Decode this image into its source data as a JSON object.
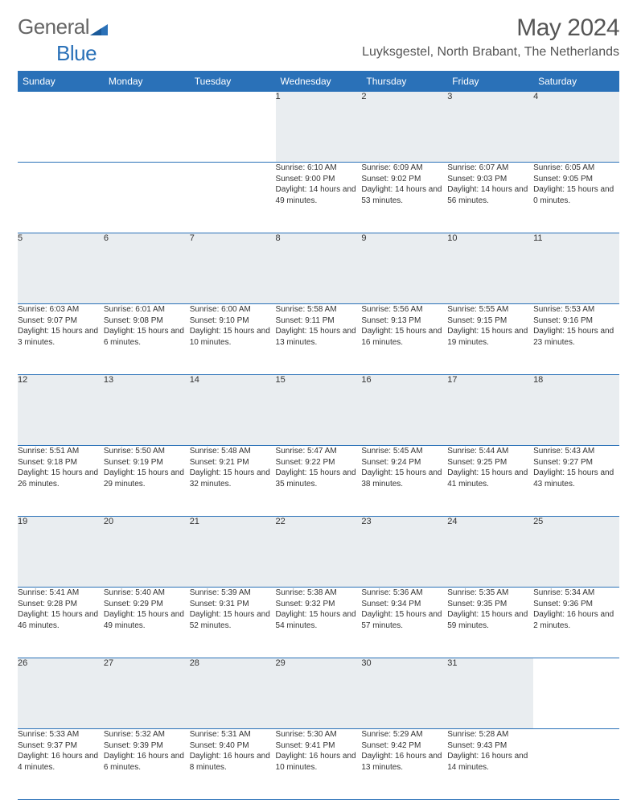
{
  "brand": {
    "general": "General",
    "blue": "Blue",
    "triangle_color": "#2a71b8"
  },
  "title": {
    "month": "May 2024",
    "location": "Luyksgestel, North Brabant, The Netherlands"
  },
  "colors": {
    "header_bg": "#2a71b8",
    "header_fg": "#ffffff",
    "daynum_bg": "#e9edf0",
    "rule": "#2a71b8"
  },
  "daysOfWeek": [
    "Sunday",
    "Monday",
    "Tuesday",
    "Wednesday",
    "Thursday",
    "Friday",
    "Saturday"
  ],
  "weeks": [
    [
      null,
      null,
      null,
      {
        "n": "1",
        "sr": "6:10 AM",
        "ss": "9:00 PM",
        "dl": "14 hours and 49 minutes."
      },
      {
        "n": "2",
        "sr": "6:09 AM",
        "ss": "9:02 PM",
        "dl": "14 hours and 53 minutes."
      },
      {
        "n": "3",
        "sr": "6:07 AM",
        "ss": "9:03 PM",
        "dl": "14 hours and 56 minutes."
      },
      {
        "n": "4",
        "sr": "6:05 AM",
        "ss": "9:05 PM",
        "dl": "15 hours and 0 minutes."
      }
    ],
    [
      {
        "n": "5",
        "sr": "6:03 AM",
        "ss": "9:07 PM",
        "dl": "15 hours and 3 minutes."
      },
      {
        "n": "6",
        "sr": "6:01 AM",
        "ss": "9:08 PM",
        "dl": "15 hours and 6 minutes."
      },
      {
        "n": "7",
        "sr": "6:00 AM",
        "ss": "9:10 PM",
        "dl": "15 hours and 10 minutes."
      },
      {
        "n": "8",
        "sr": "5:58 AM",
        "ss": "9:11 PM",
        "dl": "15 hours and 13 minutes."
      },
      {
        "n": "9",
        "sr": "5:56 AM",
        "ss": "9:13 PM",
        "dl": "15 hours and 16 minutes."
      },
      {
        "n": "10",
        "sr": "5:55 AM",
        "ss": "9:15 PM",
        "dl": "15 hours and 19 minutes."
      },
      {
        "n": "11",
        "sr": "5:53 AM",
        "ss": "9:16 PM",
        "dl": "15 hours and 23 minutes."
      }
    ],
    [
      {
        "n": "12",
        "sr": "5:51 AM",
        "ss": "9:18 PM",
        "dl": "15 hours and 26 minutes."
      },
      {
        "n": "13",
        "sr": "5:50 AM",
        "ss": "9:19 PM",
        "dl": "15 hours and 29 minutes."
      },
      {
        "n": "14",
        "sr": "5:48 AM",
        "ss": "9:21 PM",
        "dl": "15 hours and 32 minutes."
      },
      {
        "n": "15",
        "sr": "5:47 AM",
        "ss": "9:22 PM",
        "dl": "15 hours and 35 minutes."
      },
      {
        "n": "16",
        "sr": "5:45 AM",
        "ss": "9:24 PM",
        "dl": "15 hours and 38 minutes."
      },
      {
        "n": "17",
        "sr": "5:44 AM",
        "ss": "9:25 PM",
        "dl": "15 hours and 41 minutes."
      },
      {
        "n": "18",
        "sr": "5:43 AM",
        "ss": "9:27 PM",
        "dl": "15 hours and 43 minutes."
      }
    ],
    [
      {
        "n": "19",
        "sr": "5:41 AM",
        "ss": "9:28 PM",
        "dl": "15 hours and 46 minutes."
      },
      {
        "n": "20",
        "sr": "5:40 AM",
        "ss": "9:29 PM",
        "dl": "15 hours and 49 minutes."
      },
      {
        "n": "21",
        "sr": "5:39 AM",
        "ss": "9:31 PM",
        "dl": "15 hours and 52 minutes."
      },
      {
        "n": "22",
        "sr": "5:38 AM",
        "ss": "9:32 PM",
        "dl": "15 hours and 54 minutes."
      },
      {
        "n": "23",
        "sr": "5:36 AM",
        "ss": "9:34 PM",
        "dl": "15 hours and 57 minutes."
      },
      {
        "n": "24",
        "sr": "5:35 AM",
        "ss": "9:35 PM",
        "dl": "15 hours and 59 minutes."
      },
      {
        "n": "25",
        "sr": "5:34 AM",
        "ss": "9:36 PM",
        "dl": "16 hours and 2 minutes."
      }
    ],
    [
      {
        "n": "26",
        "sr": "5:33 AM",
        "ss": "9:37 PM",
        "dl": "16 hours and 4 minutes."
      },
      {
        "n": "27",
        "sr": "5:32 AM",
        "ss": "9:39 PM",
        "dl": "16 hours and 6 minutes."
      },
      {
        "n": "28",
        "sr": "5:31 AM",
        "ss": "9:40 PM",
        "dl": "16 hours and 8 minutes."
      },
      {
        "n": "29",
        "sr": "5:30 AM",
        "ss": "9:41 PM",
        "dl": "16 hours and 10 minutes."
      },
      {
        "n": "30",
        "sr": "5:29 AM",
        "ss": "9:42 PM",
        "dl": "16 hours and 13 minutes."
      },
      {
        "n": "31",
        "sr": "5:28 AM",
        "ss": "9:43 PM",
        "dl": "16 hours and 14 minutes."
      },
      null
    ]
  ],
  "labels": {
    "sunrise": "Sunrise:",
    "sunset": "Sunset:",
    "daylight": "Daylight:"
  }
}
